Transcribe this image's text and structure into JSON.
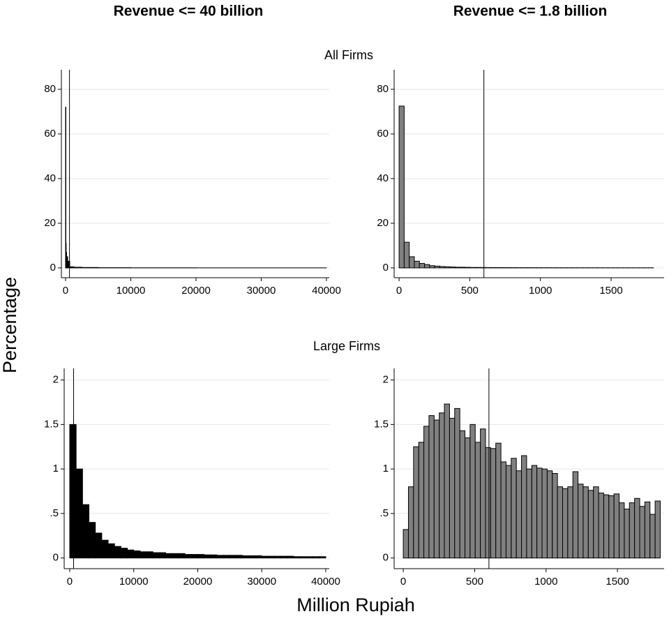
{
  "titles": {
    "columns": [
      "Revenue <= 40 billion",
      "Revenue <= 1.8 billion"
    ],
    "rows": [
      "All Firms",
      "Large Firms"
    ],
    "y_axis": "Percentage",
    "x_axis": "Million Rupiah"
  },
  "chart_data": [
    {
      "type": "histogram",
      "color": "#000000",
      "bins": [
        0,
        40,
        80,
        160,
        320,
        640,
        1280,
        2500,
        5000,
        10000,
        20000,
        40000
      ],
      "values": [
        72,
        11,
        7,
        5,
        3,
        0.5,
        0.3,
        0.2,
        0.1,
        0.05,
        0.02
      ],
      "xlim": [
        -640,
        40430
      ],
      "ylim": [
        -4.4,
        88.75
      ],
      "xticks": [
        0,
        10000,
        20000,
        30000,
        40000
      ],
      "yticks": [
        0,
        20,
        40,
        60,
        80
      ],
      "vline": 600,
      "grid": true
    },
    {
      "type": "histogram",
      "color": "#808080",
      "bins": [
        0,
        36,
        72,
        108,
        144,
        180,
        216,
        252,
        288,
        324,
        360,
        396,
        432,
        468,
        504,
        540,
        576,
        612,
        648,
        684,
        720,
        756,
        792,
        828,
        864,
        900,
        936,
        972,
        1008,
        1044,
        1080,
        1116,
        1152,
        1188,
        1224,
        1260,
        1296,
        1332,
        1368,
        1404,
        1440,
        1476,
        1512,
        1548,
        1584,
        1620,
        1656,
        1692,
        1728,
        1764,
        1800
      ],
      "values": [
        72.5,
        11.5,
        5,
        3,
        2,
        1.5,
        1,
        0.8,
        0.6,
        0.5,
        0.4,
        0.3,
        0.3,
        0.25,
        0.2,
        0.2,
        0.18,
        0.16,
        0.15,
        0.14,
        0.13,
        0.12,
        0.11,
        0.1,
        0.1,
        0.1,
        0.09,
        0.09,
        0.08,
        0.08,
        0.08,
        0.07,
        0.07,
        0.07,
        0.07,
        0.06,
        0.06,
        0.06,
        0.06,
        0.06,
        0.05,
        0.05,
        0.05,
        0.05,
        0.05,
        0.05,
        0.05,
        0.05,
        0.05,
        0.05
      ],
      "xlim": [
        -35,
        1875
      ],
      "ylim": [
        -4.4,
        88.75
      ],
      "xticks": [
        0,
        500,
        1000,
        1500
      ],
      "yticks": [
        0,
        20,
        40,
        60,
        80
      ],
      "vline": 600,
      "grid": true
    },
    {
      "type": "histogram",
      "color": "#000000",
      "bins": [
        0,
        1000,
        2000,
        3000,
        4000,
        5000,
        6000,
        7000,
        8000,
        9000,
        10000,
        11000,
        12000,
        13000,
        14000,
        15000,
        16000,
        17000,
        18000,
        19000,
        20000,
        21000,
        22000,
        23000,
        24000,
        25000,
        26000,
        27000,
        28000,
        29000,
        30000,
        31000,
        32000,
        33000,
        34000,
        35000,
        36000,
        37000,
        38000,
        39000,
        40000
      ],
      "values": [
        1.5,
        1.0,
        0.6,
        0.4,
        0.28,
        0.2,
        0.16,
        0.13,
        0.11,
        0.09,
        0.08,
        0.07,
        0.07,
        0.06,
        0.06,
        0.05,
        0.05,
        0.05,
        0.04,
        0.04,
        0.04,
        0.035,
        0.035,
        0.03,
        0.03,
        0.03,
        0.03,
        0.025,
        0.025,
        0.025,
        0.02,
        0.02,
        0.02,
        0.02,
        0.02,
        0.015,
        0.015,
        0.015,
        0.015,
        0.015
      ],
      "xlim": [
        -870,
        40550
      ],
      "ylim": [
        -0.12,
        2.13
      ],
      "xticks": [
        0,
        10000,
        20000,
        30000,
        40000
      ],
      "yticks": [
        0,
        {
          "value": 0.5,
          "label": ".5"
        },
        1,
        1.5,
        2
      ],
      "vline": 600,
      "grid": true
    },
    {
      "type": "histogram",
      "color": "#808080",
      "bins": [
        0,
        36,
        72,
        108,
        144,
        180,
        216,
        252,
        288,
        324,
        360,
        396,
        432,
        468,
        504,
        540,
        576,
        612,
        648,
        684,
        720,
        756,
        792,
        828,
        864,
        900,
        936,
        972,
        1008,
        1044,
        1080,
        1116,
        1152,
        1188,
        1224,
        1260,
        1296,
        1332,
        1368,
        1404,
        1440,
        1476,
        1512,
        1548,
        1584,
        1620,
        1656,
        1692,
        1728,
        1764,
        1800
      ],
      "values": [
        0.32,
        0.8,
        1.25,
        1.3,
        1.48,
        1.6,
        1.55,
        1.63,
        1.73,
        1.57,
        1.68,
        1.43,
        1.35,
        1.5,
        1.3,
        1.45,
        1.24,
        1.23,
        1.29,
        1.08,
        1.04,
        1.12,
        0.98,
        1.15,
        1.0,
        1.04,
        1.01,
        1.0,
        0.98,
        0.95,
        0.8,
        0.78,
        0.8,
        0.97,
        0.83,
        0.8,
        0.76,
        0.8,
        0.73,
        0.71,
        0.7,
        0.72,
        0.62,
        0.55,
        0.62,
        0.67,
        0.58,
        0.63,
        0.49,
        0.64
      ],
      "xlim": [
        -64,
        1827
      ],
      "ylim": [
        -0.12,
        2.13
      ],
      "xticks": [
        0,
        500,
        1000,
        1500
      ],
      "yticks": [
        0,
        {
          "value": 0.5,
          "label": ".5"
        },
        1,
        1.5,
        2
      ],
      "vline": 600,
      "grid": true
    }
  ]
}
